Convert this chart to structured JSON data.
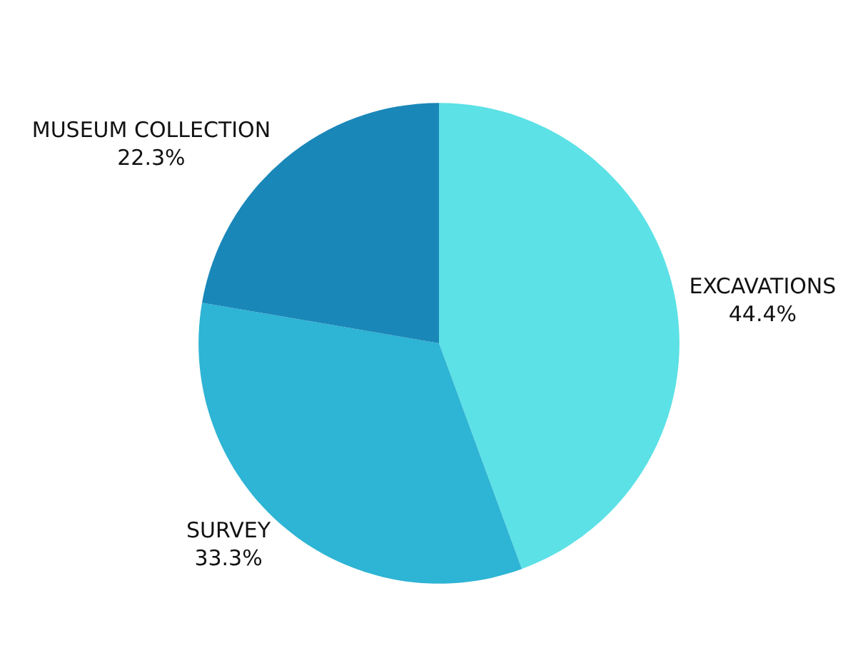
{
  "chart_data": {
    "type": "pie",
    "categories": [
      "EXCAVATIONS",
      "SURVEY",
      "MUSEUM COLLECTION"
    ],
    "values": [
      44.4,
      33.3,
      22.3
    ],
    "value_labels": [
      "44.4%",
      "33.3%",
      "22.3%"
    ],
    "colors": [
      "#5ce1e6",
      "#2eb4d4",
      "#1a87b9"
    ],
    "legend": false
  }
}
